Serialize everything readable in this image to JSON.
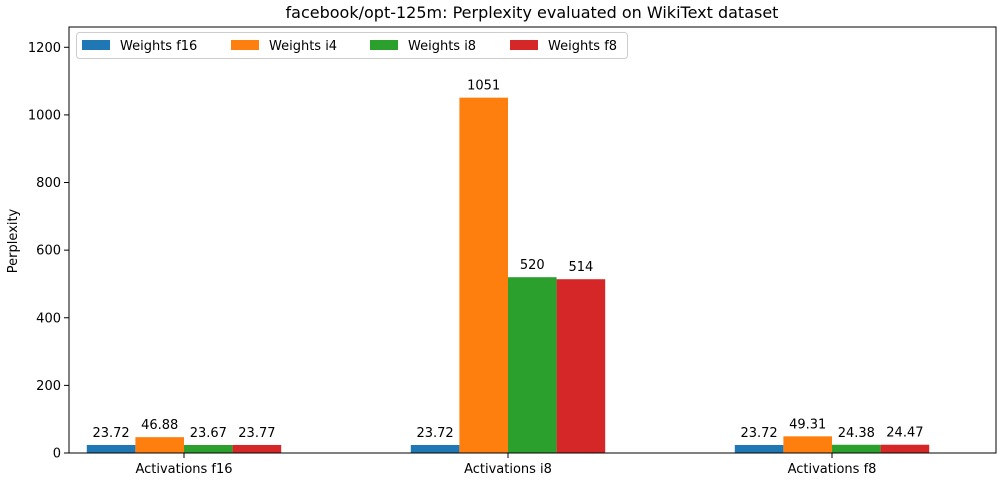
{
  "chart_data": {
    "type": "bar",
    "title": "facebook/opt-125m: Perplexity evaluated on WikiText dataset",
    "xlabel": "",
    "ylabel": "Perplexity",
    "ylim": [
      0,
      1260
    ],
    "yticks": [
      0,
      200,
      400,
      600,
      800,
      1000,
      1200
    ],
    "categories": [
      "Activations f16",
      "Activations i8",
      "Activations f8"
    ],
    "series": [
      {
        "name": "Weights f16",
        "color": "#1f77b4",
        "values": [
          23.72,
          23.72,
          23.72
        ],
        "labels": [
          "23.72",
          "23.72",
          "23.72"
        ]
      },
      {
        "name": "Weights i4",
        "color": "#ff7f0e",
        "values": [
          46.88,
          1051,
          49.31
        ],
        "labels": [
          "46.88",
          "1051",
          "49.31"
        ]
      },
      {
        "name": "Weights i8",
        "color": "#2ca02c",
        "values": [
          23.67,
          520,
          24.38
        ],
        "labels": [
          "23.67",
          "520",
          "24.38"
        ]
      },
      {
        "name": "Weights f8",
        "color": "#d62728",
        "values": [
          23.77,
          514,
          24.47
        ],
        "labels": [
          "23.77",
          "514",
          "24.47"
        ]
      }
    ],
    "legend": "top-left",
    "grid": false
  }
}
